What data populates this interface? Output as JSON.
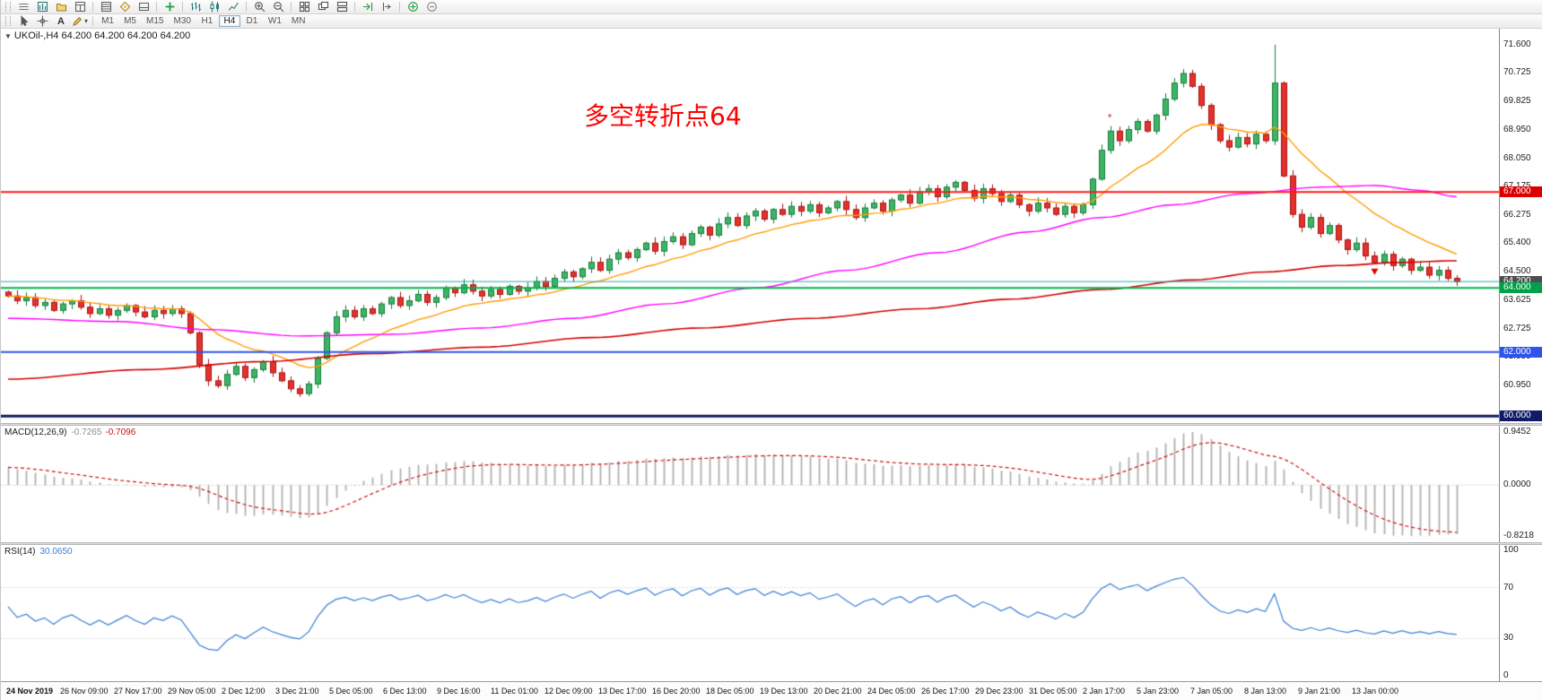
{
  "toolbar_main": {
    "items": [
      "menu",
      "new-chart",
      "profiles",
      "market-watch",
      "sep",
      "data-window",
      "navigator",
      "terminal",
      "sep",
      "new-order",
      "sep",
      "chart-bars",
      "chart-candles",
      "chart-line",
      "sep",
      "zoom-in",
      "zoom-out",
      "sep",
      "tile-windows",
      "cascade-windows",
      "tile-horizontal",
      "sep",
      "auto-scroll",
      "chart-shift",
      "sep",
      "indicators",
      "fullscreen"
    ]
  },
  "toolbar_tools": {
    "items": [
      "pointer",
      "crosshair",
      "text-tool",
      "draw-tools"
    ],
    "text_tool_label": "A",
    "timeframes": [
      {
        "label": "M1"
      },
      {
        "label": "M5"
      },
      {
        "label": "M15"
      },
      {
        "label": "M30"
      },
      {
        "label": "H1"
      },
      {
        "label": "H4"
      },
      {
        "label": "D1"
      },
      {
        "label": "W1"
      },
      {
        "label": "MN"
      }
    ],
    "active": "H4"
  },
  "chart": {
    "symbol_label": "UKOil-,H4  64.200 64.200 64.200 64.200",
    "annotation": {
      "text": "多空转折点64",
      "color": "#ff0000"
    },
    "price_axis": {
      "ticks": [
        "71.600",
        "70.725",
        "69.825",
        "68.950",
        "68.050",
        "67.175",
        "66.275",
        "65.400",
        "64.500",
        "63.625",
        "62.725",
        "61.850",
        "60.950"
      ]
    },
    "hlines": [
      {
        "price": 67.0,
        "label": "67.000",
        "color": "#ff1a1a",
        "label_bg": "#dd0000",
        "width": 2
      },
      {
        "price": 64.2,
        "label": "64.200",
        "color": "#20b2aa",
        "label_bg": "#4d4d4d",
        "width": 1
      },
      {
        "price": 64.0,
        "label": "64.000",
        "color": "#00b44a",
        "label_bg": "#00a04a",
        "width": 2
      },
      {
        "price": 62.0,
        "label": "62.000",
        "color": "#2f54eb",
        "label_bg": "#2f54eb",
        "width": 2
      },
      {
        "price": 60.0,
        "label": "60.000",
        "color": "#101a66",
        "label_bg": "#101a66",
        "width": 3
      }
    ]
  },
  "chart_data": {
    "type": "candlestick",
    "symbol": "UKOil-",
    "timeframe": "H4",
    "price_min": 59.78,
    "price_max": 72.1,
    "closes": [
      63.75,
      63.6,
      63.7,
      63.45,
      63.55,
      63.3,
      63.5,
      63.6,
      63.4,
      63.2,
      63.35,
      63.15,
      63.3,
      63.45,
      63.25,
      63.1,
      63.3,
      63.2,
      63.35,
      63.2,
      62.6,
      61.6,
      61.1,
      60.95,
      61.3,
      61.55,
      61.2,
      61.45,
      61.7,
      61.35,
      61.1,
      60.85,
      60.7,
      61.0,
      61.8,
      62.6,
      63.1,
      63.3,
      63.1,
      63.35,
      63.2,
      63.5,
      63.7,
      63.45,
      63.6,
      63.8,
      63.55,
      63.7,
      64.0,
      63.85,
      64.1,
      63.9,
      63.75,
      63.95,
      63.8,
      64.05,
      63.9,
      64.0,
      64.2,
      64.05,
      64.3,
      64.5,
      64.35,
      64.6,
      64.8,
      64.55,
      64.9,
      65.1,
      64.95,
      65.2,
      65.4,
      65.15,
      65.45,
      65.6,
      65.35,
      65.7,
      65.9,
      65.65,
      66.0,
      66.2,
      65.95,
      66.25,
      66.4,
      66.15,
      66.45,
      66.3,
      66.55,
      66.4,
      66.6,
      66.35,
      66.5,
      66.7,
      66.45,
      66.2,
      66.5,
      66.65,
      66.4,
      66.75,
      66.9,
      66.65,
      67.0,
      67.1,
      66.85,
      67.15,
      67.3,
      67.05,
      66.8,
      67.1,
      66.95,
      66.7,
      66.9,
      66.6,
      66.4,
      66.65,
      66.5,
      66.3,
      66.55,
      66.35,
      66.6,
      67.4,
      68.3,
      68.9,
      68.6,
      68.95,
      69.2,
      68.9,
      69.4,
      69.9,
      70.4,
      70.7,
      70.3,
      69.7,
      69.1,
      68.6,
      68.4,
      68.7,
      68.5,
      68.8,
      68.6,
      70.4,
      67.5,
      66.3,
      65.9,
      66.2,
      65.7,
      65.95,
      65.5,
      65.2,
      65.4,
      65.0,
      64.8,
      65.05,
      64.7,
      64.9,
      64.55,
      64.65,
      64.4,
      64.55,
      64.3,
      64.2
    ],
    "wick_overrides": {
      "32": {
        "low": 60.6
      },
      "139": {
        "high": 71.6
      }
    },
    "colors": {
      "up": "#3db565",
      "up_border": "#157a3a",
      "down": "#e5312b",
      "down_border": "#a31212"
    },
    "moving_averages": [
      {
        "name": "ma-fast",
        "color": "#ff9c00",
        "period": 15
      },
      {
        "name": "ma-mid",
        "color": "#ff00ff",
        "points": [
          [
            0,
            63.05
          ],
          [
            12,
            62.95
          ],
          [
            22,
            62.7
          ],
          [
            32,
            62.5
          ],
          [
            42,
            62.55
          ],
          [
            52,
            62.75
          ],
          [
            62,
            63.05
          ],
          [
            72,
            63.5
          ],
          [
            82,
            64.0
          ],
          [
            92,
            64.55
          ],
          [
            102,
            65.1
          ],
          [
            112,
            65.75
          ],
          [
            120,
            66.2
          ],
          [
            128,
            66.6
          ],
          [
            136,
            66.95
          ],
          [
            144,
            67.15
          ],
          [
            150,
            67.2
          ],
          [
            155,
            67.05
          ],
          [
            159,
            66.85
          ]
        ]
      },
      {
        "name": "ma-slow",
        "color": "#d40000",
        "points": [
          [
            0,
            61.15
          ],
          [
            15,
            61.45
          ],
          [
            28,
            61.7
          ],
          [
            40,
            61.95
          ],
          [
            52,
            62.15
          ],
          [
            64,
            62.45
          ],
          [
            76,
            62.75
          ],
          [
            88,
            63.05
          ],
          [
            100,
            63.35
          ],
          [
            110,
            63.65
          ],
          [
            120,
            63.95
          ],
          [
            130,
            64.25
          ],
          [
            138,
            64.5
          ],
          [
            146,
            64.7
          ],
          [
            153,
            64.8
          ],
          [
            159,
            64.85
          ]
        ]
      }
    ],
    "markers": [
      {
        "type": "sell-arrow",
        "index": 150,
        "price": 64.55
      },
      {
        "type": "close-star",
        "index": 121,
        "price": 69.3
      }
    ]
  },
  "macd": {
    "label": "MACD(12,26,9)",
    "value_main": "-0.7265",
    "value_signal": "-0.7096",
    "scale": [
      "0.9452",
      "0.0000",
      "-0.8218"
    ],
    "histogram_color": "#b0b0b0",
    "signal_color": "#cc1111"
  },
  "rsi": {
    "label": "RSI(14)",
    "value": "30.0650",
    "scale": [
      "100",
      "70",
      "30",
      "0"
    ],
    "levels": [
      70,
      30
    ],
    "line_color": "#3a7fd5"
  },
  "time_axis": {
    "labels": [
      "24 Nov 2019",
      "26 Nov 09:00",
      "27 Nov 17:00",
      "29 Nov 05:00",
      "2 Dec 12:00",
      "3 Dec 21:00",
      "5 Dec 05:00",
      "6 Dec 13:00",
      "9 Dec 16:00",
      "11 Dec 01:00",
      "12 Dec 09:00",
      "13 Dec 17:00",
      "16 Dec 20:00",
      "18 Dec 05:00",
      "19 Dec 13:00",
      "20 Dec 21:00",
      "24 Dec 05:00",
      "26 Dec 17:00",
      "29 Dec 23:00",
      "31 Dec 05:00",
      "2 Jan 17:00",
      "5 Jan 23:00",
      "7 Jan 05:00",
      "8 Jan 13:00",
      "9 Jan 21:00",
      "13 Jan 00:00"
    ]
  }
}
